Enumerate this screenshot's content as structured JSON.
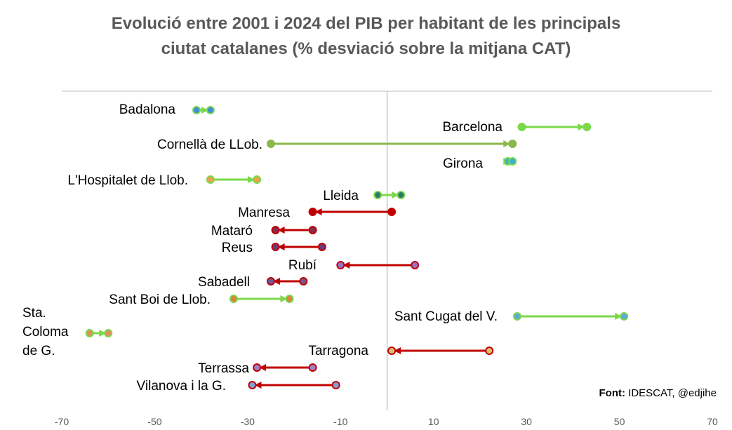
{
  "chart_data": {
    "type": "dumbbell",
    "title_line1": "Evolució entre 2001 i 2024 del PIB per habitant de les principals",
    "title_line2": "ciutat catalanes (% desviació sobre la mitjana CAT)",
    "xlabel": "",
    "ylabel": "",
    "xlim": [
      -70,
      70
    ],
    "xticks": [
      "-70",
      "-50",
      "-30",
      "-10",
      "10",
      "30",
      "50",
      "70"
    ],
    "series_names": [
      "2001",
      "2024"
    ],
    "cities": [
      {
        "name": "Badalona",
        "v2001": -41,
        "v2024": -38,
        "color": "#7ad84a",
        "dot": "#3f8fd8"
      },
      {
        "name": "Barcelona",
        "v2001": 29,
        "v2024": 43,
        "color": "#7ad84a",
        "dot": "#7ad84a"
      },
      {
        "name": "Cornellà de LLob.",
        "v2001": -25,
        "v2024": 27,
        "color": "#8bb84a",
        "dot": "#8bb84a"
      },
      {
        "name": "Girona",
        "v2001": 26,
        "v2024": 27,
        "color": "#7ad84a",
        "dot": "#3fb0c8"
      },
      {
        "name": "L'Hospitalet de Llob.",
        "v2001": -38,
        "v2024": -28,
        "color": "#7ad84a",
        "dot": "#f0a050"
      },
      {
        "name": "Lleida",
        "v2001": -2,
        "v2024": 3,
        "color": "#7ad84a",
        "dot": "#2e7a6a"
      },
      {
        "name": "Manresa",
        "v2001": 1,
        "v2024": -16,
        "color": "#c00000",
        "dot": "#c00000"
      },
      {
        "name": "Mataró",
        "v2001": -16,
        "v2024": -24,
        "color": "#c00000",
        "dot": "#8a2a50"
      },
      {
        "name": "Reus",
        "v2001": -14,
        "v2024": -24,
        "color": "#c00000",
        "dot": "#6a3a80"
      },
      {
        "name": "Rubí",
        "v2001": 6,
        "v2024": -10,
        "color": "#c00000",
        "dot": "#9a70c8"
      },
      {
        "name": "Sabadell",
        "v2001": -18,
        "v2024": -25,
        "color": "#c00000",
        "dot": "#6a5a9a"
      },
      {
        "name": "Sant Boi de Llob.",
        "v2001": -33,
        "v2024": -21,
        "color": "#7ad84a",
        "dot": "#e08040"
      },
      {
        "name": "Sant Cugat del V.",
        "v2001": 28,
        "v2024": 51,
        "color": "#7ad84a",
        "dot": "#60a8e0"
      },
      {
        "name_lines": [
          "Sta.",
          "Coloma",
          "de G."
        ],
        "v2001": -64,
        "v2024": -60,
        "color": "#7ad84a",
        "dot": "#e09060"
      },
      {
        "name": "Tarragona",
        "v2001": 22,
        "v2024": 1,
        "color": "#c00000",
        "dot": "#d8c070"
      },
      {
        "name": "Terrassa",
        "v2001": -16,
        "v2024": -28,
        "color": "#c00000",
        "dot": "#a080c8"
      },
      {
        "name": "Vilanova i la G.",
        "v2001": -11,
        "v2024": -29,
        "color": "#c00000",
        "dot": "#80a0d8"
      }
    ],
    "source_label": "Font:",
    "source_value": "IDESCAT, @edjihe"
  }
}
